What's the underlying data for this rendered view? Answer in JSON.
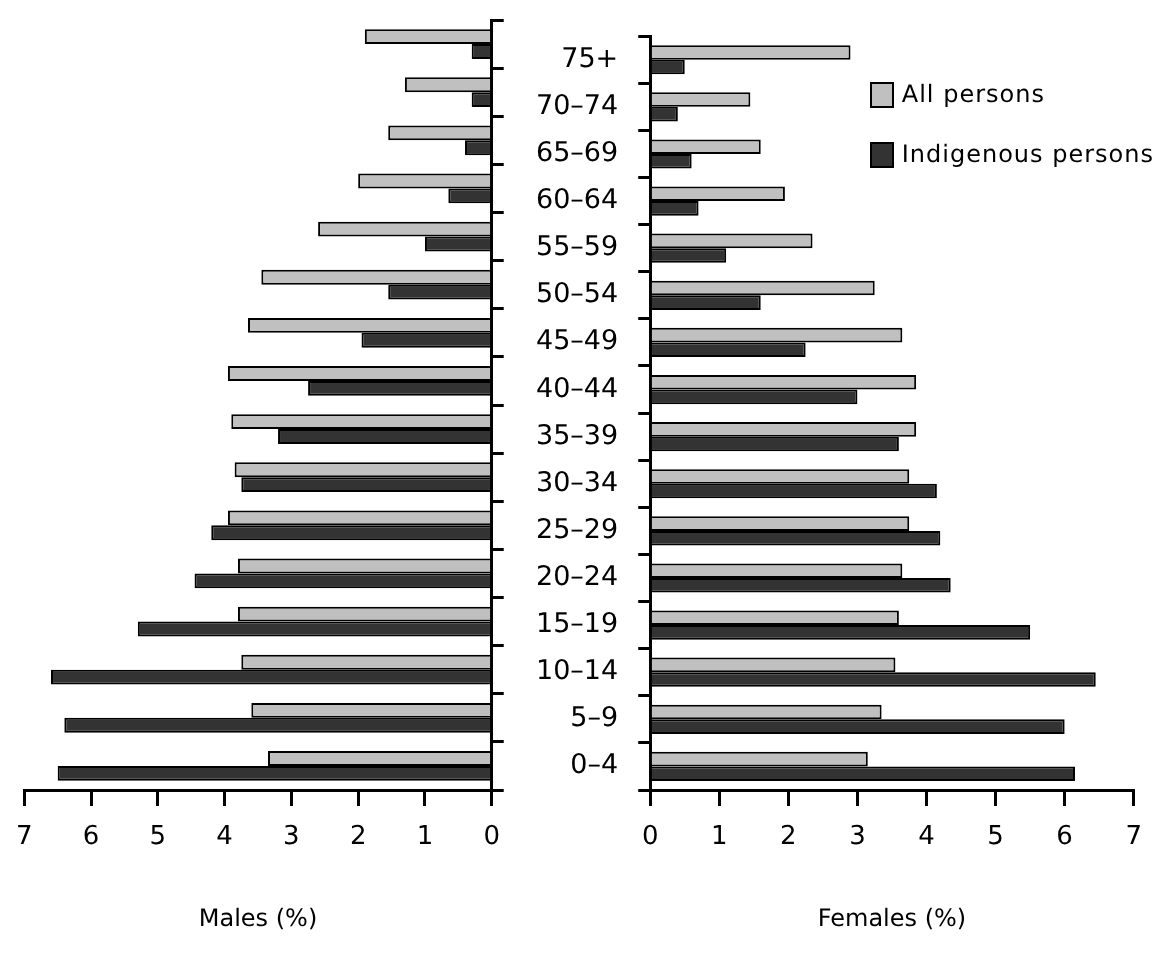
{
  "chart_data": [
    {
      "type": "bar",
      "orientation": "horizontal",
      "xlabel": "Males (%)",
      "categories": [
        null,
        null,
        null,
        null,
        null,
        null,
        null,
        null,
        null,
        null,
        null,
        null,
        null,
        null,
        null,
        null
      ],
      "xlim": [
        7,
        0
      ],
      "xticks": [
        7,
        6,
        5,
        4,
        3,
        2,
        1,
        0
      ],
      "tick_labels": "x",
      "grid": false,
      "legend": false,
      "series": [
        {
          "color": "#c0c0c0",
          "values": [
            1.9,
            1.3,
            1.55,
            2.0,
            2.6,
            3.45,
            3.65,
            3.95,
            3.9,
            3.85,
            3.95,
            3.8,
            3.8,
            3.75,
            3.6,
            3.35
          ]
        },
        {
          "color": "#333333",
          "values": [
            0.3,
            0.3,
            0.4,
            0.65,
            1.0,
            1.55,
            1.95,
            2.75,
            3.2,
            3.75,
            4.2,
            4.45,
            5.3,
            6.6,
            6.4,
            6.5
          ]
        }
      ]
    },
    {
      "type": "bar",
      "orientation": "horizontal",
      "xlabel": "Females (%)",
      "categories": [
        "75+",
        "70–74",
        "65–69",
        "60–64",
        "55–59",
        "50–54",
        "45–49",
        "40–44",
        "35–39",
        "30–34",
        "25–29",
        "20–24",
        "15–19",
        "10–14",
        "5–9",
        "0–4"
      ],
      "xlim": [
        0,
        7
      ],
      "xticks": [
        0,
        1,
        2,
        3,
        4,
        5,
        6,
        7
      ],
      "grid": false,
      "legend": "top right",
      "series": [
        {
          "name": "All persons",
          "color": "#c0c0c0",
          "values": [
            2.9,
            1.45,
            1.6,
            1.95,
            2.35,
            3.25,
            3.65,
            3.85,
            3.85,
            3.75,
            3.75,
            3.65,
            3.6,
            3.55,
            3.35,
            3.15
          ]
        },
        {
          "name": "Indigenous persons",
          "color": "#333333",
          "values": [
            0.5,
            0.4,
            0.6,
            0.7,
            1.1,
            1.6,
            2.25,
            3.0,
            3.6,
            4.15,
            4.2,
            4.35,
            5.5,
            6.45,
            6.0,
            6.15
          ]
        }
      ]
    }
  ]
}
